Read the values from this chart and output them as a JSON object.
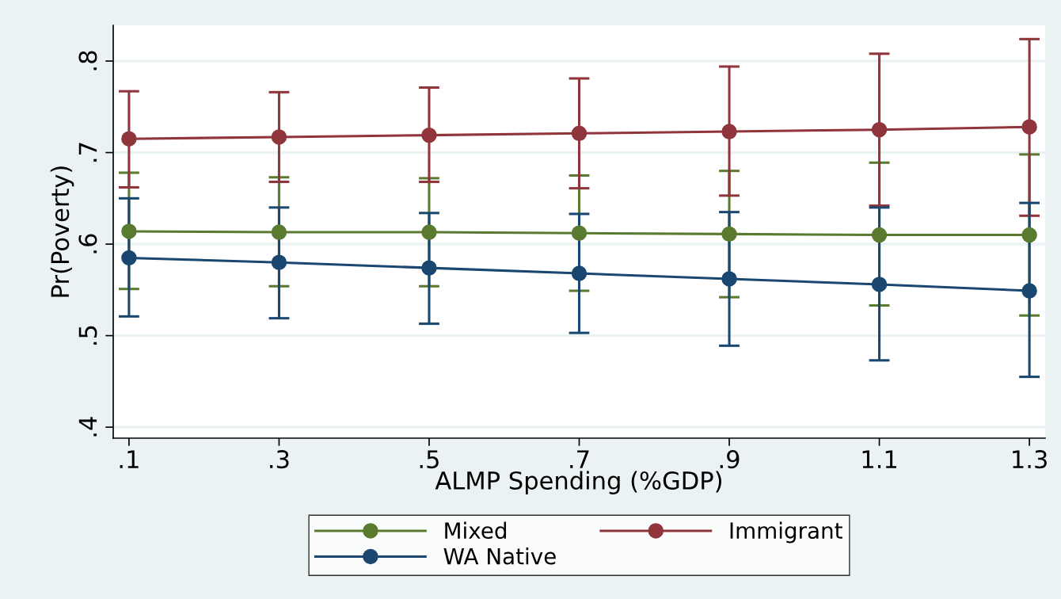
{
  "chart_data": {
    "type": "line",
    "xlabel": "ALMP Spending (%GDP)",
    "ylabel": "Pr(Poverty)",
    "x": [
      0.1,
      0.3,
      0.5,
      0.7,
      0.9,
      1.1,
      1.3
    ],
    "xlim": [
      0.079,
      1.321
    ],
    "ylim": [
      0.388,
      0.839
    ],
    "xticks": [
      {
        "value": 0.1,
        "label": ".1"
      },
      {
        "value": 0.3,
        "label": ".3"
      },
      {
        "value": 0.5,
        "label": ".5"
      },
      {
        "value": 0.7,
        "label": ".7"
      },
      {
        "value": 0.9,
        "label": ".9"
      },
      {
        "value": 1.1,
        "label": "1.1"
      },
      {
        "value": 1.3,
        "label": "1.3"
      }
    ],
    "yticks": [
      {
        "value": 0.4,
        "label": ".4"
      },
      {
        "value": 0.5,
        "label": ".5"
      },
      {
        "value": 0.6,
        "label": ".6"
      },
      {
        "value": 0.7,
        "label": ".7"
      },
      {
        "value": 0.8,
        "label": ".8"
      }
    ],
    "grid": "y",
    "legend": "bottom",
    "marker": "circle",
    "line_style": "solid",
    "series": [
      {
        "name": "Mixed",
        "color": "#5a7a30",
        "values": [
          0.614,
          0.613,
          0.613,
          0.612,
          0.611,
          0.61,
          0.61
        ],
        "errors": [
          [
            0.551,
            0.678
          ],
          [
            0.554,
            0.673
          ],
          [
            0.554,
            0.672
          ],
          [
            0.549,
            0.675
          ],
          [
            0.542,
            0.68
          ],
          [
            0.533,
            0.689
          ],
          [
            0.522,
            0.698
          ]
        ]
      },
      {
        "name": "Immigrant",
        "color": "#90353b",
        "values": [
          0.715,
          0.717,
          0.719,
          0.721,
          0.723,
          0.725,
          0.728
        ],
        "errors": [
          [
            0.662,
            0.767
          ],
          [
            0.668,
            0.766
          ],
          [
            0.668,
            0.771
          ],
          [
            0.661,
            0.781
          ],
          [
            0.653,
            0.794
          ],
          [
            0.642,
            0.808
          ],
          [
            0.631,
            0.824
          ]
        ]
      },
      {
        "name": "WA Native",
        "color": "#1a476f",
        "values": [
          0.585,
          0.58,
          0.574,
          0.568,
          0.562,
          0.556,
          0.549
        ],
        "errors": [
          [
            0.521,
            0.65
          ],
          [
            0.519,
            0.64
          ],
          [
            0.513,
            0.634
          ],
          [
            0.503,
            0.633
          ],
          [
            0.489,
            0.635
          ],
          [
            0.473,
            0.64
          ],
          [
            0.455,
            0.645
          ]
        ]
      }
    ]
  }
}
